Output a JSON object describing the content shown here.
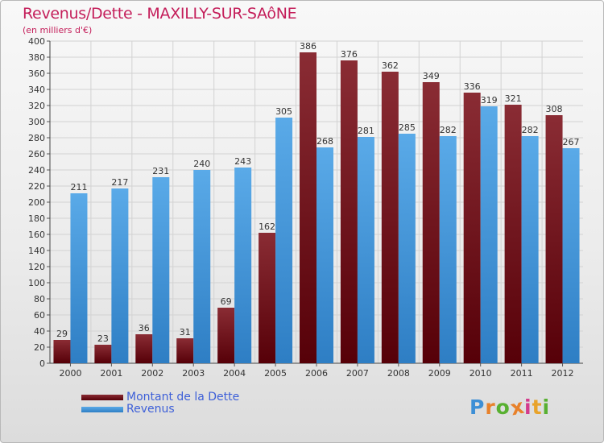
{
  "header": {
    "title": "Revenus/Dette - MAXILLY-SUR-SAôNE",
    "subtitle": "(en milliers d'€)"
  },
  "chart_data": {
    "type": "bar",
    "categories": [
      "2000",
      "2001",
      "2002",
      "2003",
      "2004",
      "2005",
      "2006",
      "2007",
      "2008",
      "2009",
      "2010",
      "2011",
      "2012"
    ],
    "series": [
      {
        "name": "Montant de la Dette",
        "color": "#7a1c22",
        "values": [
          29,
          23,
          36,
          31,
          69,
          162,
          386,
          376,
          362,
          349,
          336,
          321,
          308
        ]
      },
      {
        "name": "Revenus",
        "color": "#4c9fe0",
        "values": [
          211,
          217,
          231,
          240,
          243,
          305,
          268,
          281,
          285,
          282,
          319,
          282,
          267
        ]
      }
    ],
    "ylim": [
      0,
      400
    ],
    "y_tick_step": 20,
    "grid": true,
    "legend_position": "bottom-left",
    "xlabel": "",
    "ylabel": ""
  },
  "logo": {
    "letters": [
      "P",
      "r",
      "o",
      "x",
      "i",
      "t",
      "i"
    ],
    "colors": [
      "#3d8fd6",
      "#e8812a",
      "#58b031",
      "#e8812a",
      "#d33b8c",
      "#e8a32a",
      "#58b031"
    ]
  }
}
